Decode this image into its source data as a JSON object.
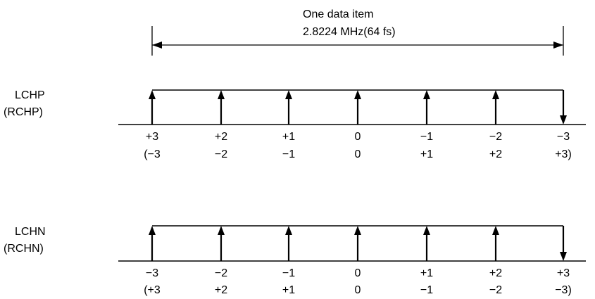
{
  "header": {
    "title_line1": "One data item",
    "title_line2": "2.8224 MHz(64 fs)"
  },
  "panels": [
    {
      "label_line1": "LCHP",
      "label_line2": "(RCHP)",
      "arrows": [
        "up",
        "up",
        "up",
        "up",
        "up",
        "up",
        "down"
      ],
      "values_top": [
        "+3",
        "+2",
        "+1",
        "0",
        "−1",
        "−2",
        "−3"
      ],
      "values_bottom": [
        "(−3",
        "−2",
        "−1",
        "0",
        "+1",
        "+2",
        "+3)"
      ]
    },
    {
      "label_line1": "LCHN",
      "label_line2": "(RCHN)",
      "arrows": [
        "up",
        "up",
        "up",
        "up",
        "up",
        "up",
        "down"
      ],
      "values_top": [
        "−3",
        "−2",
        "−1",
        "0",
        "+1",
        "+2",
        "+3"
      ],
      "values_bottom": [
        "(+3",
        "+2",
        "+1",
        "0",
        "−1",
        "−2",
        "−3)"
      ]
    }
  ],
  "colors": {
    "line": "#000000",
    "background": "#ffffff"
  }
}
